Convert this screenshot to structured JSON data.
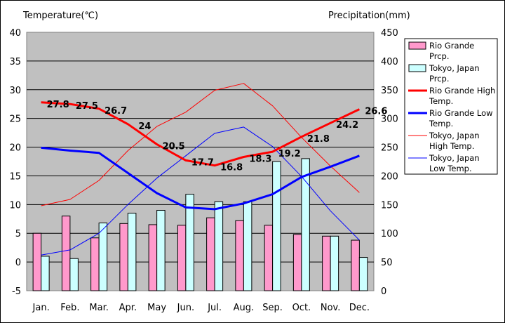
{
  "chart_data": {
    "type": "bar+line",
    "left_axis_title": "Temperature(℃)",
    "right_axis_title": "Precipitation(mm)",
    "categories": [
      "Jan.",
      "Feb.",
      "Mar.",
      "Apr.",
      "May",
      "Jun.",
      "Jul.",
      "Aug.",
      "Sep.",
      "Oct.",
      "Nov.",
      "Dec."
    ],
    "left_ticks": [
      -5,
      0,
      5,
      10,
      15,
      20,
      25,
      30,
      35,
      40
    ],
    "right_ticks": [
      0,
      50,
      100,
      150,
      200,
      250,
      300,
      350,
      400,
      450
    ],
    "left_range": [
      -5,
      40
    ],
    "right_range": [
      0,
      450
    ],
    "series": [
      {
        "key": "rg_prcp",
        "name": "Rio Grande Prcp.",
        "kind": "bar",
        "axis": "right",
        "color": "#ff99cc",
        "values": [
          100,
          130,
          92,
          117,
          115,
          114,
          127,
          122,
          114,
          98,
          95,
          88
        ]
      },
      {
        "key": "tk_prcp",
        "name": "Tokyo, Japan Prcp.",
        "kind": "bar",
        "axis": "right",
        "color": "#ccffff",
        "values": [
          60,
          56,
          118,
          135,
          140,
          168,
          155,
          155,
          225,
          230,
          95,
          58
        ]
      },
      {
        "key": "rg_high",
        "name": "Rio Grande High Temp.",
        "kind": "line",
        "axis": "left",
        "color": "#ff0000",
        "width": 3,
        "values": [
          27.8,
          27.5,
          26.7,
          24,
          20.5,
          17.7,
          16.8,
          18.3,
          19.2,
          21.8,
          24.2,
          26.6
        ],
        "labels": [
          "27.8",
          "27.5",
          "26.7",
          "24",
          "20.5",
          "17.7",
          "16.8",
          "18.3",
          "19.2",
          "21.8",
          "24.2",
          "26.6"
        ]
      },
      {
        "key": "rg_low",
        "name": "Rio Grande Low Temp.",
        "kind": "line",
        "axis": "left",
        "color": "#0000ff",
        "width": 3,
        "values": [
          19.9,
          19.4,
          19.0,
          15.5,
          12.0,
          9.5,
          9.2,
          10.2,
          11.8,
          14.8,
          16.6,
          18.5
        ]
      },
      {
        "key": "tk_high",
        "name": "Tokyo, Japan High Temp.",
        "kind": "line",
        "axis": "left",
        "color": "#ff0000",
        "width": 1,
        "values": [
          9.8,
          10.9,
          14.2,
          19.4,
          23.6,
          26.1,
          29.9,
          31.1,
          27.2,
          21.7,
          16.7,
          12.1
        ]
      },
      {
        "key": "tk_low",
        "name": "Tokyo, Japan Low Temp.",
        "kind": "line",
        "axis": "left",
        "color": "#0000ff",
        "width": 1,
        "values": [
          1.2,
          2.1,
          5.0,
          10.0,
          14.6,
          18.5,
          22.4,
          23.5,
          20.1,
          14.9,
          8.9,
          3.8
        ]
      }
    ],
    "legend": [
      {
        "key": "rg_prcp",
        "line1": "Rio Grande",
        "line2": "Prcp."
      },
      {
        "key": "tk_prcp",
        "line1": "Tokyo, Japan",
        "line2": "Prcp."
      },
      {
        "key": "rg_high",
        "line1": "Rio Grande High",
        "line2": "Temp."
      },
      {
        "key": "rg_low",
        "line1": "Rio Grande Low",
        "line2": "Temp."
      },
      {
        "key": "tk_high",
        "line1": "Tokyo, Japan",
        "line2": "High Temp."
      },
      {
        "key": "tk_low",
        "line1": "Tokyo, Japan",
        "line2": "Low Temp."
      }
    ],
    "legend_placement": "right",
    "grid": true,
    "plot_background": "#c0c0c0"
  }
}
